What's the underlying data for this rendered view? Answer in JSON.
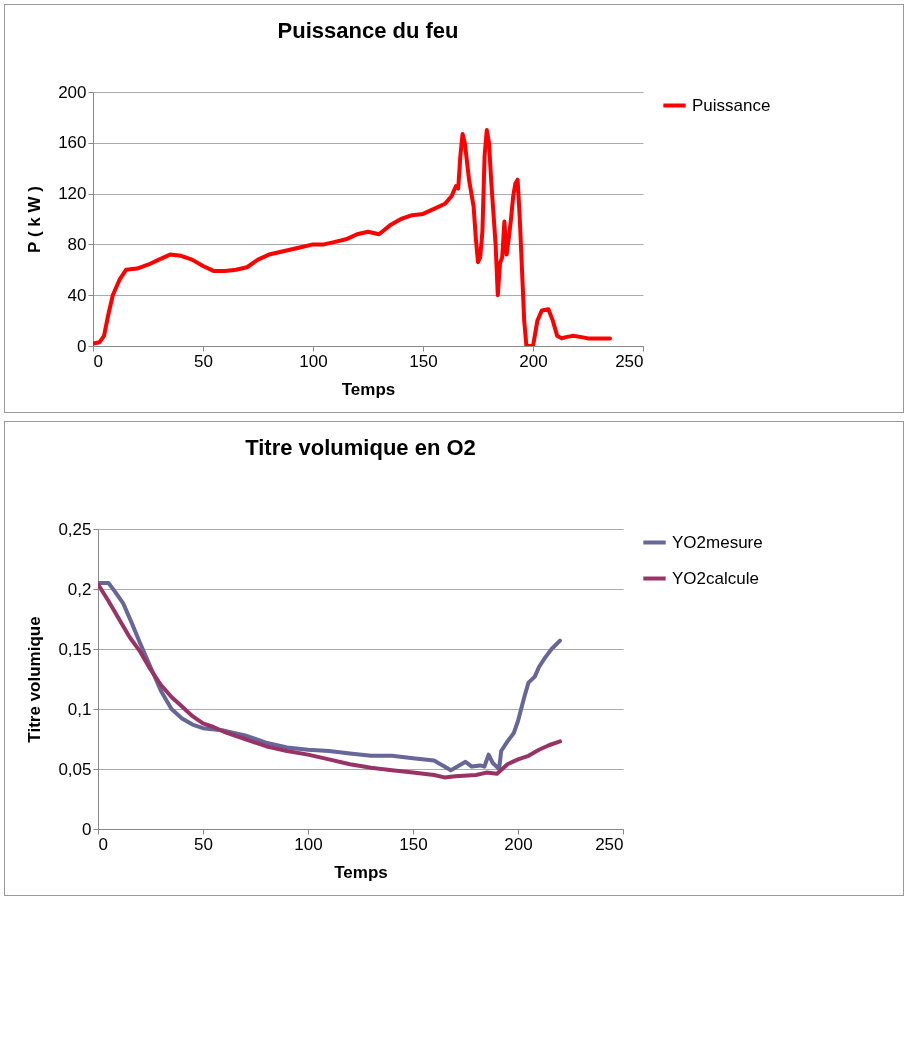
{
  "chart_data": [
    {
      "type": "line",
      "title": "Puissance du feu",
      "xlabel": "Temps",
      "ylabel": "P ( k W )",
      "xlim": [
        0,
        250
      ],
      "xticks": [
        0,
        50,
        100,
        150,
        200,
        250
      ],
      "ylim": [
        0,
        200
      ],
      "yticks": [
        0,
        40,
        80,
        120,
        160,
        200
      ],
      "grid": "y",
      "legend": "right",
      "marker": "none",
      "line_style": "solid",
      "x": [
        0,
        3,
        5,
        7,
        9,
        12,
        15,
        20,
        25,
        30,
        35,
        40,
        45,
        50,
        55,
        60,
        65,
        70,
        75,
        80,
        85,
        90,
        95,
        100,
        105,
        110,
        115,
        120,
        125,
        130,
        135,
        140,
        145,
        150,
        155,
        160,
        163,
        165,
        166,
        167,
        168,
        169,
        171,
        173,
        174,
        175,
        176,
        177,
        178,
        179,
        180,
        181,
        182,
        183,
        184,
        185,
        186,
        187,
        188,
        189,
        190,
        191,
        192,
        193,
        194,
        195,
        196,
        197,
        200,
        201,
        202,
        204,
        207,
        209,
        211,
        213,
        215,
        218,
        222,
        225,
        235
      ],
      "series": [
        {
          "name": "Puissance",
          "color": "#ff0000",
          "values": [
            2,
            3,
            8,
            25,
            40,
            52,
            60,
            61,
            64,
            68,
            72,
            71,
            68,
            63,
            59,
            59,
            60,
            62,
            68,
            72,
            74,
            76,
            78,
            80,
            80,
            82,
            84,
            88,
            90,
            88,
            95,
            100,
            103,
            104,
            108,
            112,
            118,
            126,
            124,
            150,
            167,
            160,
            130,
            110,
            85,
            66,
            70,
            90,
            150,
            170,
            160,
            130,
            105,
            80,
            40,
            65,
            70,
            98,
            72,
            85,
            100,
            118,
            128,
            131,
            100,
            60,
            20,
            0,
            0,
            10,
            20,
            28,
            29,
            20,
            8,
            6,
            7,
            8,
            7,
            6,
            6
          ]
        }
      ]
    },
    {
      "type": "line",
      "title": "Titre volumique en O2",
      "xlabel": "Temps",
      "ylabel": "Titre volumique",
      "xlim": [
        0,
        250
      ],
      "xticks": [
        0,
        50,
        100,
        150,
        200,
        250
      ],
      "ylim": [
        0,
        0.25
      ],
      "yticks": [
        0,
        {
          "value": 0.05,
          "label": "0,05"
        },
        {
          "value": 0.1,
          "label": "0,1"
        },
        {
          "value": 0.15,
          "label": "0,15"
        },
        {
          "value": 0.2,
          "label": "0,2"
        },
        {
          "value": 0.25,
          "label": "0,25"
        }
      ],
      "grid": "y",
      "legend": "right",
      "marker": "none",
      "line_style": "solid",
      "series": [
        {
          "name": "YO2mesure",
          "color": "#666699",
          "x": [
            0,
            5,
            8,
            12,
            16,
            20,
            25,
            30,
            35,
            40,
            45,
            50,
            60,
            70,
            80,
            90,
            100,
            110,
            120,
            130,
            140,
            150,
            160,
            165,
            168,
            172,
            175,
            178,
            182,
            184,
            186,
            188,
            191,
            192,
            195,
            198,
            200,
            203,
            205,
            208,
            210,
            213,
            216,
            220
          ],
          "values": [
            0.205,
            0.205,
            0.198,
            0.188,
            0.172,
            0.155,
            0.135,
            0.115,
            0.1,
            0.092,
            0.087,
            0.084,
            0.082,
            0.078,
            0.072,
            0.068,
            0.066,
            0.065,
            0.063,
            0.061,
            0.061,
            0.059,
            0.057,
            0.052,
            0.049,
            0.053,
            0.056,
            0.052,
            0.053,
            0.052,
            0.062,
            0.055,
            0.05,
            0.065,
            0.073,
            0.08,
            0.09,
            0.11,
            0.122,
            0.127,
            0.135,
            0.143,
            0.15,
            0.157
          ]
        },
        {
          "name": "YO2calcule",
          "color": "#993366",
          "x": [
            0,
            5,
            10,
            15,
            20,
            25,
            30,
            35,
            40,
            45,
            50,
            55,
            60,
            70,
            80,
            90,
            100,
            110,
            120,
            130,
            140,
            150,
            160,
            165,
            170,
            180,
            185,
            190,
            195,
            200,
            205,
            210,
            215,
            220
          ],
          "values": [
            0.204,
            0.19,
            0.175,
            0.16,
            0.148,
            0.133,
            0.12,
            0.11,
            0.102,
            0.094,
            0.088,
            0.085,
            0.081,
            0.075,
            0.069,
            0.065,
            0.062,
            0.058,
            0.054,
            0.051,
            0.049,
            0.047,
            0.045,
            0.043,
            0.044,
            0.045,
            0.047,
            0.046,
            0.054,
            0.058,
            0.061,
            0.066,
            0.07,
            0.073
          ]
        }
      ]
    }
  ]
}
